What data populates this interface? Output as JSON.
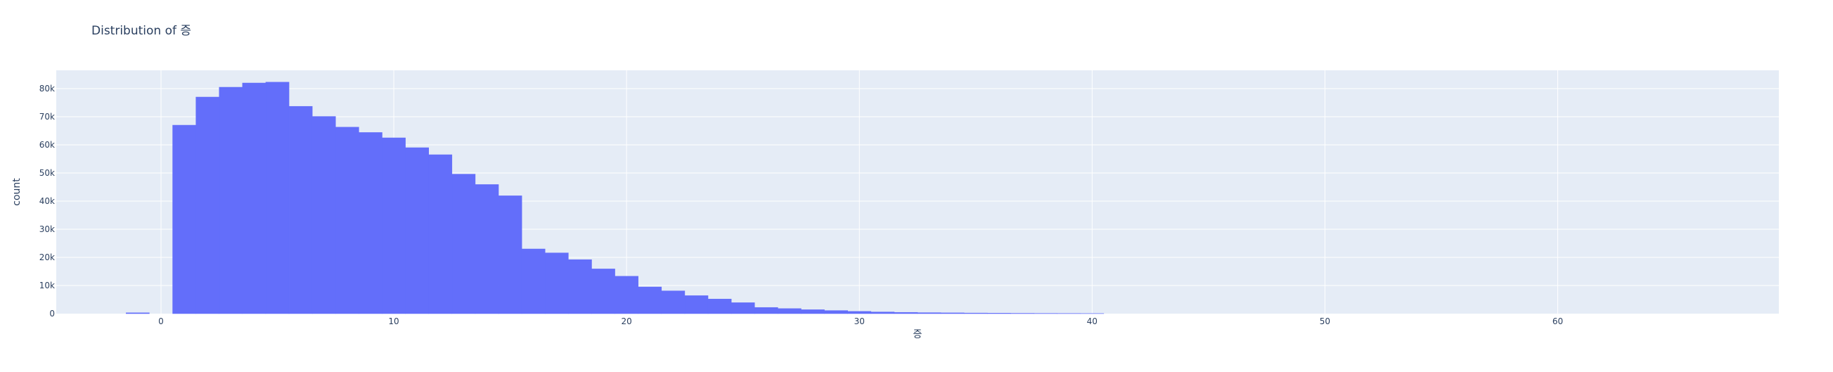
{
  "colors": {
    "plot_bg": "#E5ECF6",
    "grid": "#ffffff",
    "bar": "#636EFA",
    "text": "#2a3f5f"
  },
  "chart_data": {
    "type": "bar",
    "title": "Distribution of 증",
    "xlabel": "증",
    "ylabel": "count",
    "xlim": [
      -4.5,
      69.5
    ],
    "ylim": [
      0,
      86500
    ],
    "x_ticks": [
      0,
      10,
      20,
      30,
      40,
      50,
      60
    ],
    "x_tick_labels": [
      "0",
      "10",
      "20",
      "30",
      "40",
      "50",
      "60"
    ],
    "y_ticks": [
      0,
      10000,
      20000,
      30000,
      40000,
      50000,
      60000,
      70000,
      80000
    ],
    "y_tick_labels": [
      "0",
      "10k",
      "20k",
      "30k",
      "40k",
      "50k",
      "60k",
      "70k",
      "80k"
    ],
    "bin_width": 1,
    "bin_starts": [
      -1.5,
      0.5,
      1.5,
      2.5,
      3.5,
      4.5,
      5.5,
      6.5,
      7.5,
      8.5,
      9.5,
      10.5,
      11.5,
      12.5,
      13.5,
      14.5,
      15.5,
      16.5,
      17.5,
      18.5,
      19.5,
      20.5,
      21.5,
      22.5,
      23.5,
      24.5,
      25.5,
      26.5,
      27.5,
      28.5,
      29.5,
      30.5,
      31.5,
      32.5,
      33.5,
      34.5,
      35.5,
      36.5,
      37.5,
      38.5,
      39.5
    ],
    "values": [
      300,
      67000,
      77000,
      80500,
      82000,
      82300,
      73700,
      70100,
      66300,
      64400,
      62500,
      59000,
      56500,
      49600,
      45900,
      41900,
      23000,
      21600,
      19200,
      15900,
      13300,
      9500,
      8100,
      6400,
      5200,
      3900,
      2200,
      1800,
      1400,
      1100,
      800,
      600,
      450,
      350,
      280,
      220,
      170,
      130,
      100,
      80,
      60
    ],
    "grid": true,
    "legend": "none"
  }
}
